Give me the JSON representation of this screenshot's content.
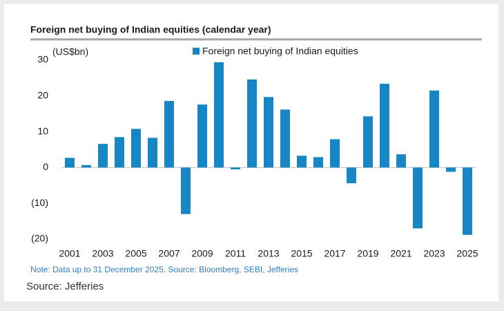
{
  "chart_data": {
    "type": "bar",
    "title": "Foreign net buying of Indian equities (calendar year)",
    "y_label": "(US$bn)",
    "categories": [
      "2001",
      null,
      "2003",
      null,
      "2005",
      null,
      "2007",
      null,
      "2009",
      null,
      "2011",
      null,
      "2013",
      null,
      "2015",
      null,
      "2017",
      null,
      "2019",
      null,
      "2021",
      null,
      "2023",
      null,
      "2025"
    ],
    "series": [
      {
        "name": "Foreign net buying of Indian equities",
        "color": "#1786c2",
        "values": [
          2.7,
          0.7,
          6.6,
          8.5,
          10.8,
          8.3,
          18.6,
          -13,
          17.6,
          29.4,
          -0.5,
          24.6,
          19.7,
          16.2,
          3.3,
          2.9,
          7.9,
          -4.4,
          14.3,
          23.4,
          3.7,
          -17,
          21.5,
          -1.2,
          -18.8
        ]
      }
    ],
    "ylim": [
      -20,
      30
    ],
    "yticks": [
      30,
      20,
      10,
      0,
      {
        "value": -10,
        "label": "(10)"
      },
      {
        "value": -20,
        "label": "(20)"
      }
    ],
    "grid": false,
    "note": "Note: Data up to 31 December 2025. Source: Bloomberg, SEBI, Jefferies",
    "source": "Source: Jefferies"
  }
}
